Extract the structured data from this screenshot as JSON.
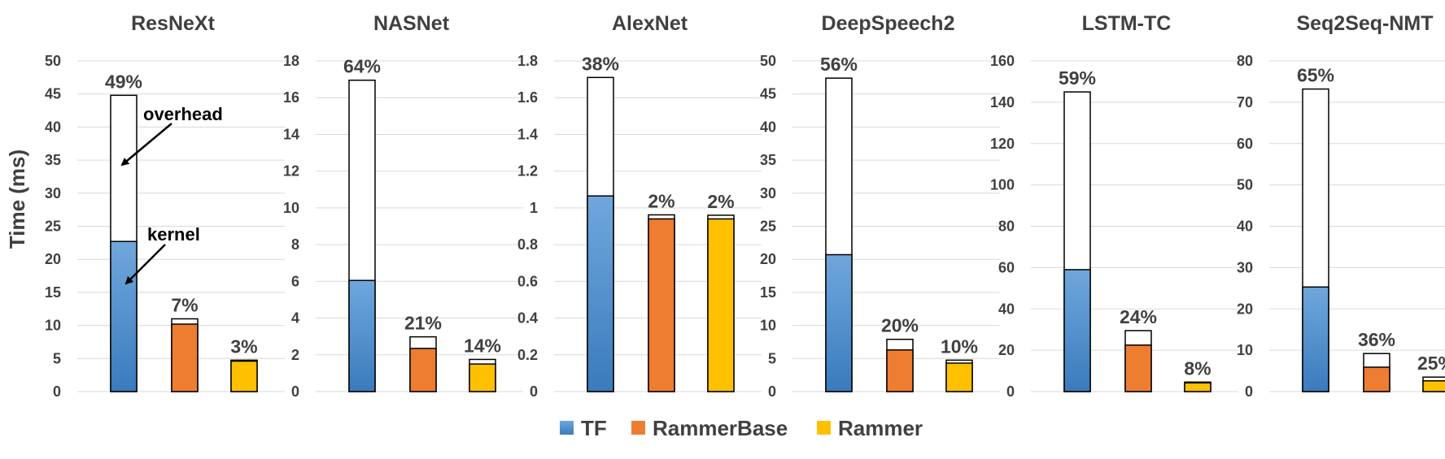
{
  "chart_data": {
    "type": "bar",
    "stacked": true,
    "ylabel": "Time (ms)",
    "grid": true,
    "legend_placement": "bottom-center",
    "series_names": [
      "TF",
      "RammerBase",
      "Rammer"
    ],
    "series_colors": {
      "TF": "#4a88c7",
      "RammerBase": "#ed7d31",
      "Rammer": "#ffc000",
      "overhead": "#ffffff"
    },
    "stack_components": [
      "kernel",
      "overhead"
    ],
    "annotations": {
      "overhead": "overhead",
      "kernel": "kernel"
    },
    "panels": [
      {
        "title": "ResNeXt",
        "ylim": [
          0,
          50
        ],
        "yticks": [
          "0",
          "5",
          "10",
          "15",
          "20",
          "25",
          "30",
          "35",
          "40",
          "45",
          "50"
        ],
        "bars": [
          {
            "series": "TF",
            "kernel": 22.7,
            "total": 44.8,
            "overhead_pct": "49%"
          },
          {
            "series": "RammerBase",
            "kernel": 10.2,
            "total": 11.0,
            "overhead_pct": "7%"
          },
          {
            "series": "Rammer",
            "kernel": 4.6,
            "total": 4.75,
            "overhead_pct": "3%"
          }
        ]
      },
      {
        "title": "NASNet",
        "ylim": [
          0,
          18
        ],
        "yticks": [
          "0",
          "2",
          "4",
          "6",
          "8",
          "10",
          "12",
          "14",
          "16",
          "18"
        ],
        "bars": [
          {
            "series": "TF",
            "kernel": 6.05,
            "total": 16.95,
            "overhead_pct": "64%"
          },
          {
            "series": "RammerBase",
            "kernel": 2.35,
            "total": 2.98,
            "overhead_pct": "21%"
          },
          {
            "series": "Rammer",
            "kernel": 1.5,
            "total": 1.75,
            "overhead_pct": "14%"
          }
        ]
      },
      {
        "title": "AlexNet",
        "ylim": [
          0,
          1.8
        ],
        "yticks": [
          "0",
          "0.2",
          "0.4",
          "0.6",
          "0.8",
          "1",
          "1.2",
          "1.4",
          "1.6",
          "1.8"
        ],
        "bars": [
          {
            "series": "TF",
            "kernel": 1.065,
            "total": 1.71,
            "overhead_pct": "38%"
          },
          {
            "series": "RammerBase",
            "kernel": 0.94,
            "total": 0.962,
            "overhead_pct": "2%"
          },
          {
            "series": "Rammer",
            "kernel": 0.94,
            "total": 0.96,
            "overhead_pct": "2%"
          }
        ]
      },
      {
        "title": "DeepSpeech2",
        "ylim": [
          0,
          50
        ],
        "yticks": [
          "0",
          "5",
          "10",
          "15",
          "20",
          "25",
          "30",
          "35",
          "40",
          "45",
          "50"
        ],
        "bars": [
          {
            "series": "TF",
            "kernel": 20.7,
            "total": 47.4,
            "overhead_pct": "56%"
          },
          {
            "series": "RammerBase",
            "kernel": 6.3,
            "total": 7.9,
            "overhead_pct": "20%"
          },
          {
            "series": "Rammer",
            "kernel": 4.3,
            "total": 4.75,
            "overhead_pct": "10%"
          }
        ]
      },
      {
        "title": "LSTM-TC",
        "ylim": [
          0,
          160
        ],
        "yticks": [
          "0",
          "20",
          "40",
          "60",
          "80",
          "100",
          "120",
          "140",
          "160"
        ],
        "bars": [
          {
            "series": "TF",
            "kernel": 59,
            "total": 145,
            "overhead_pct": "59%"
          },
          {
            "series": "RammerBase",
            "kernel": 22.5,
            "total": 29.5,
            "overhead_pct": "24%"
          },
          {
            "series": "Rammer",
            "kernel": 4.2,
            "total": 4.6,
            "overhead_pct": "8%"
          }
        ]
      },
      {
        "title": "Seq2Seq-NMT",
        "ylim": [
          0,
          80
        ],
        "yticks": [
          "0",
          "10",
          "20",
          "30",
          "40",
          "50",
          "60",
          "70",
          "80"
        ],
        "bars": [
          {
            "series": "TF",
            "kernel": 25.3,
            "total": 73.2,
            "overhead_pct": "65%"
          },
          {
            "series": "RammerBase",
            "kernel": 5.9,
            "total": 9.2,
            "overhead_pct": "36%"
          },
          {
            "series": "Rammer",
            "kernel": 2.6,
            "total": 3.5,
            "overhead_pct": "25%"
          }
        ]
      }
    ]
  }
}
